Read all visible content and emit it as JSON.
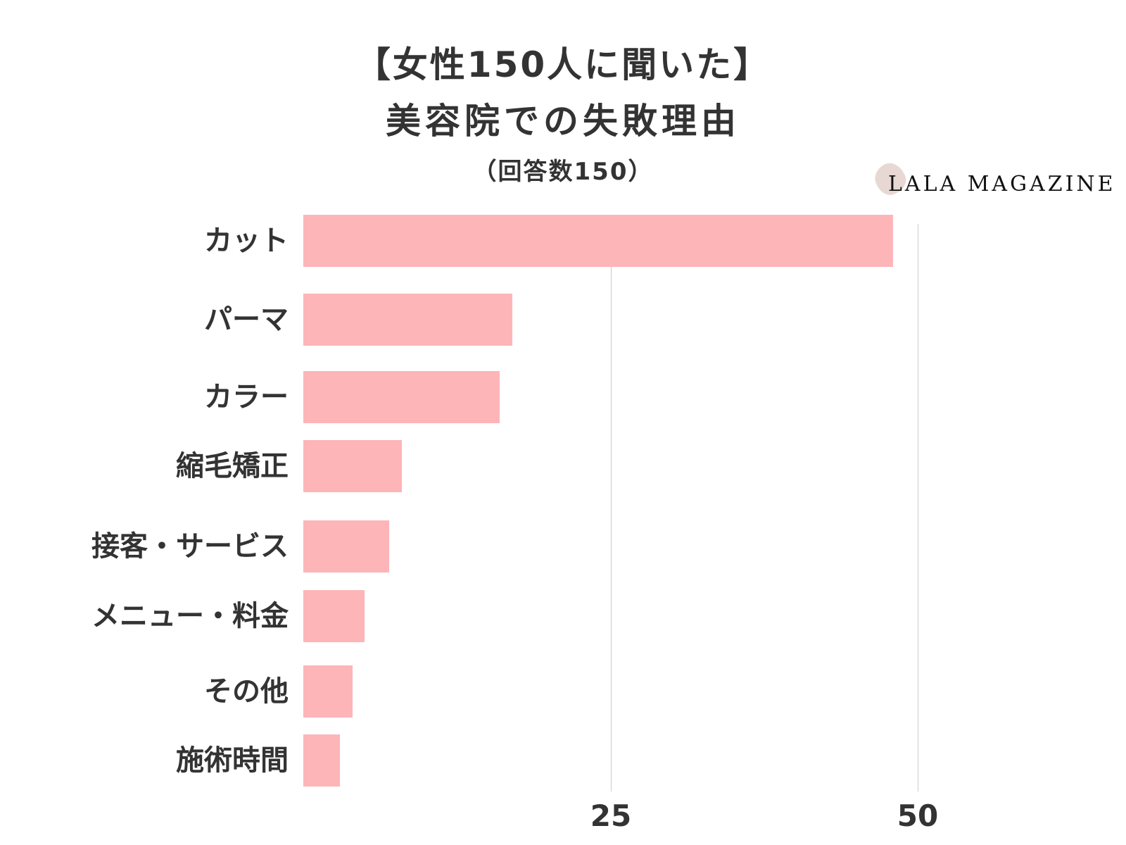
{
  "header": {
    "title_line1": "【女性150人に聞いた】",
    "title_line2": "美容院での失敗理由",
    "subtitle": "（回答数150）"
  },
  "logo": {
    "text": "LALA MAGAZINE",
    "blob_color": "#e8d8d3"
  },
  "colors": {
    "bar": "#fdb5b8",
    "text": "#333333",
    "grid": "#cccccc"
  },
  "axis": {
    "ticks": [
      "25",
      "50"
    ]
  },
  "chart_data": {
    "type": "bar",
    "orientation": "horizontal",
    "title": "【女性150人に聞いた】美容院での失敗理由（回答数150）",
    "categories": [
      "カット",
      "パーマ",
      "カラー",
      "縮毛矯正",
      "接客・サービス",
      "メニュー・料金",
      "その他",
      "施術時間"
    ],
    "values": [
      48,
      17,
      16,
      8,
      7,
      5,
      4,
      3
    ],
    "xlabel": "",
    "ylabel": "",
    "xlim": [
      0,
      50
    ],
    "xticks": [
      25,
      50
    ],
    "grid": true,
    "legend": null
  }
}
